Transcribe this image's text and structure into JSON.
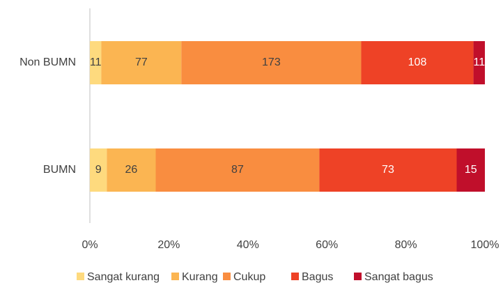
{
  "chart_data": {
    "type": "bar",
    "orientation": "horizontal",
    "stacking": "percent",
    "categories": [
      "Non BUMN",
      "BUMN"
    ],
    "series": [
      {
        "name": "Sangat kurang",
        "color": "#FEDA7E",
        "values": [
          11,
          9
        ]
      },
      {
        "name": "Kurang",
        "color": "#FBB552",
        "values": [
          77,
          26
        ]
      },
      {
        "name": "Cukup",
        "color": "#F98D40",
        "values": [
          173,
          87
        ]
      },
      {
        "name": "Bagus",
        "color": "#EE4226",
        "values": [
          108,
          73
        ]
      },
      {
        "name": "Sangat bagus",
        "color": "#C00F2B",
        "values": [
          11,
          15
        ]
      }
    ],
    "xlim": [
      0,
      100
    ],
    "xticks": [
      {
        "value": 0,
        "label": "0%"
      },
      {
        "value": 20,
        "label": "20%"
      },
      {
        "value": 40,
        "label": "40%"
      },
      {
        "value": 60,
        "label": "60%"
      },
      {
        "value": 80,
        "label": "80%"
      },
      {
        "value": 100,
        "label": "100%"
      }
    ],
    "legend": "bottom"
  }
}
